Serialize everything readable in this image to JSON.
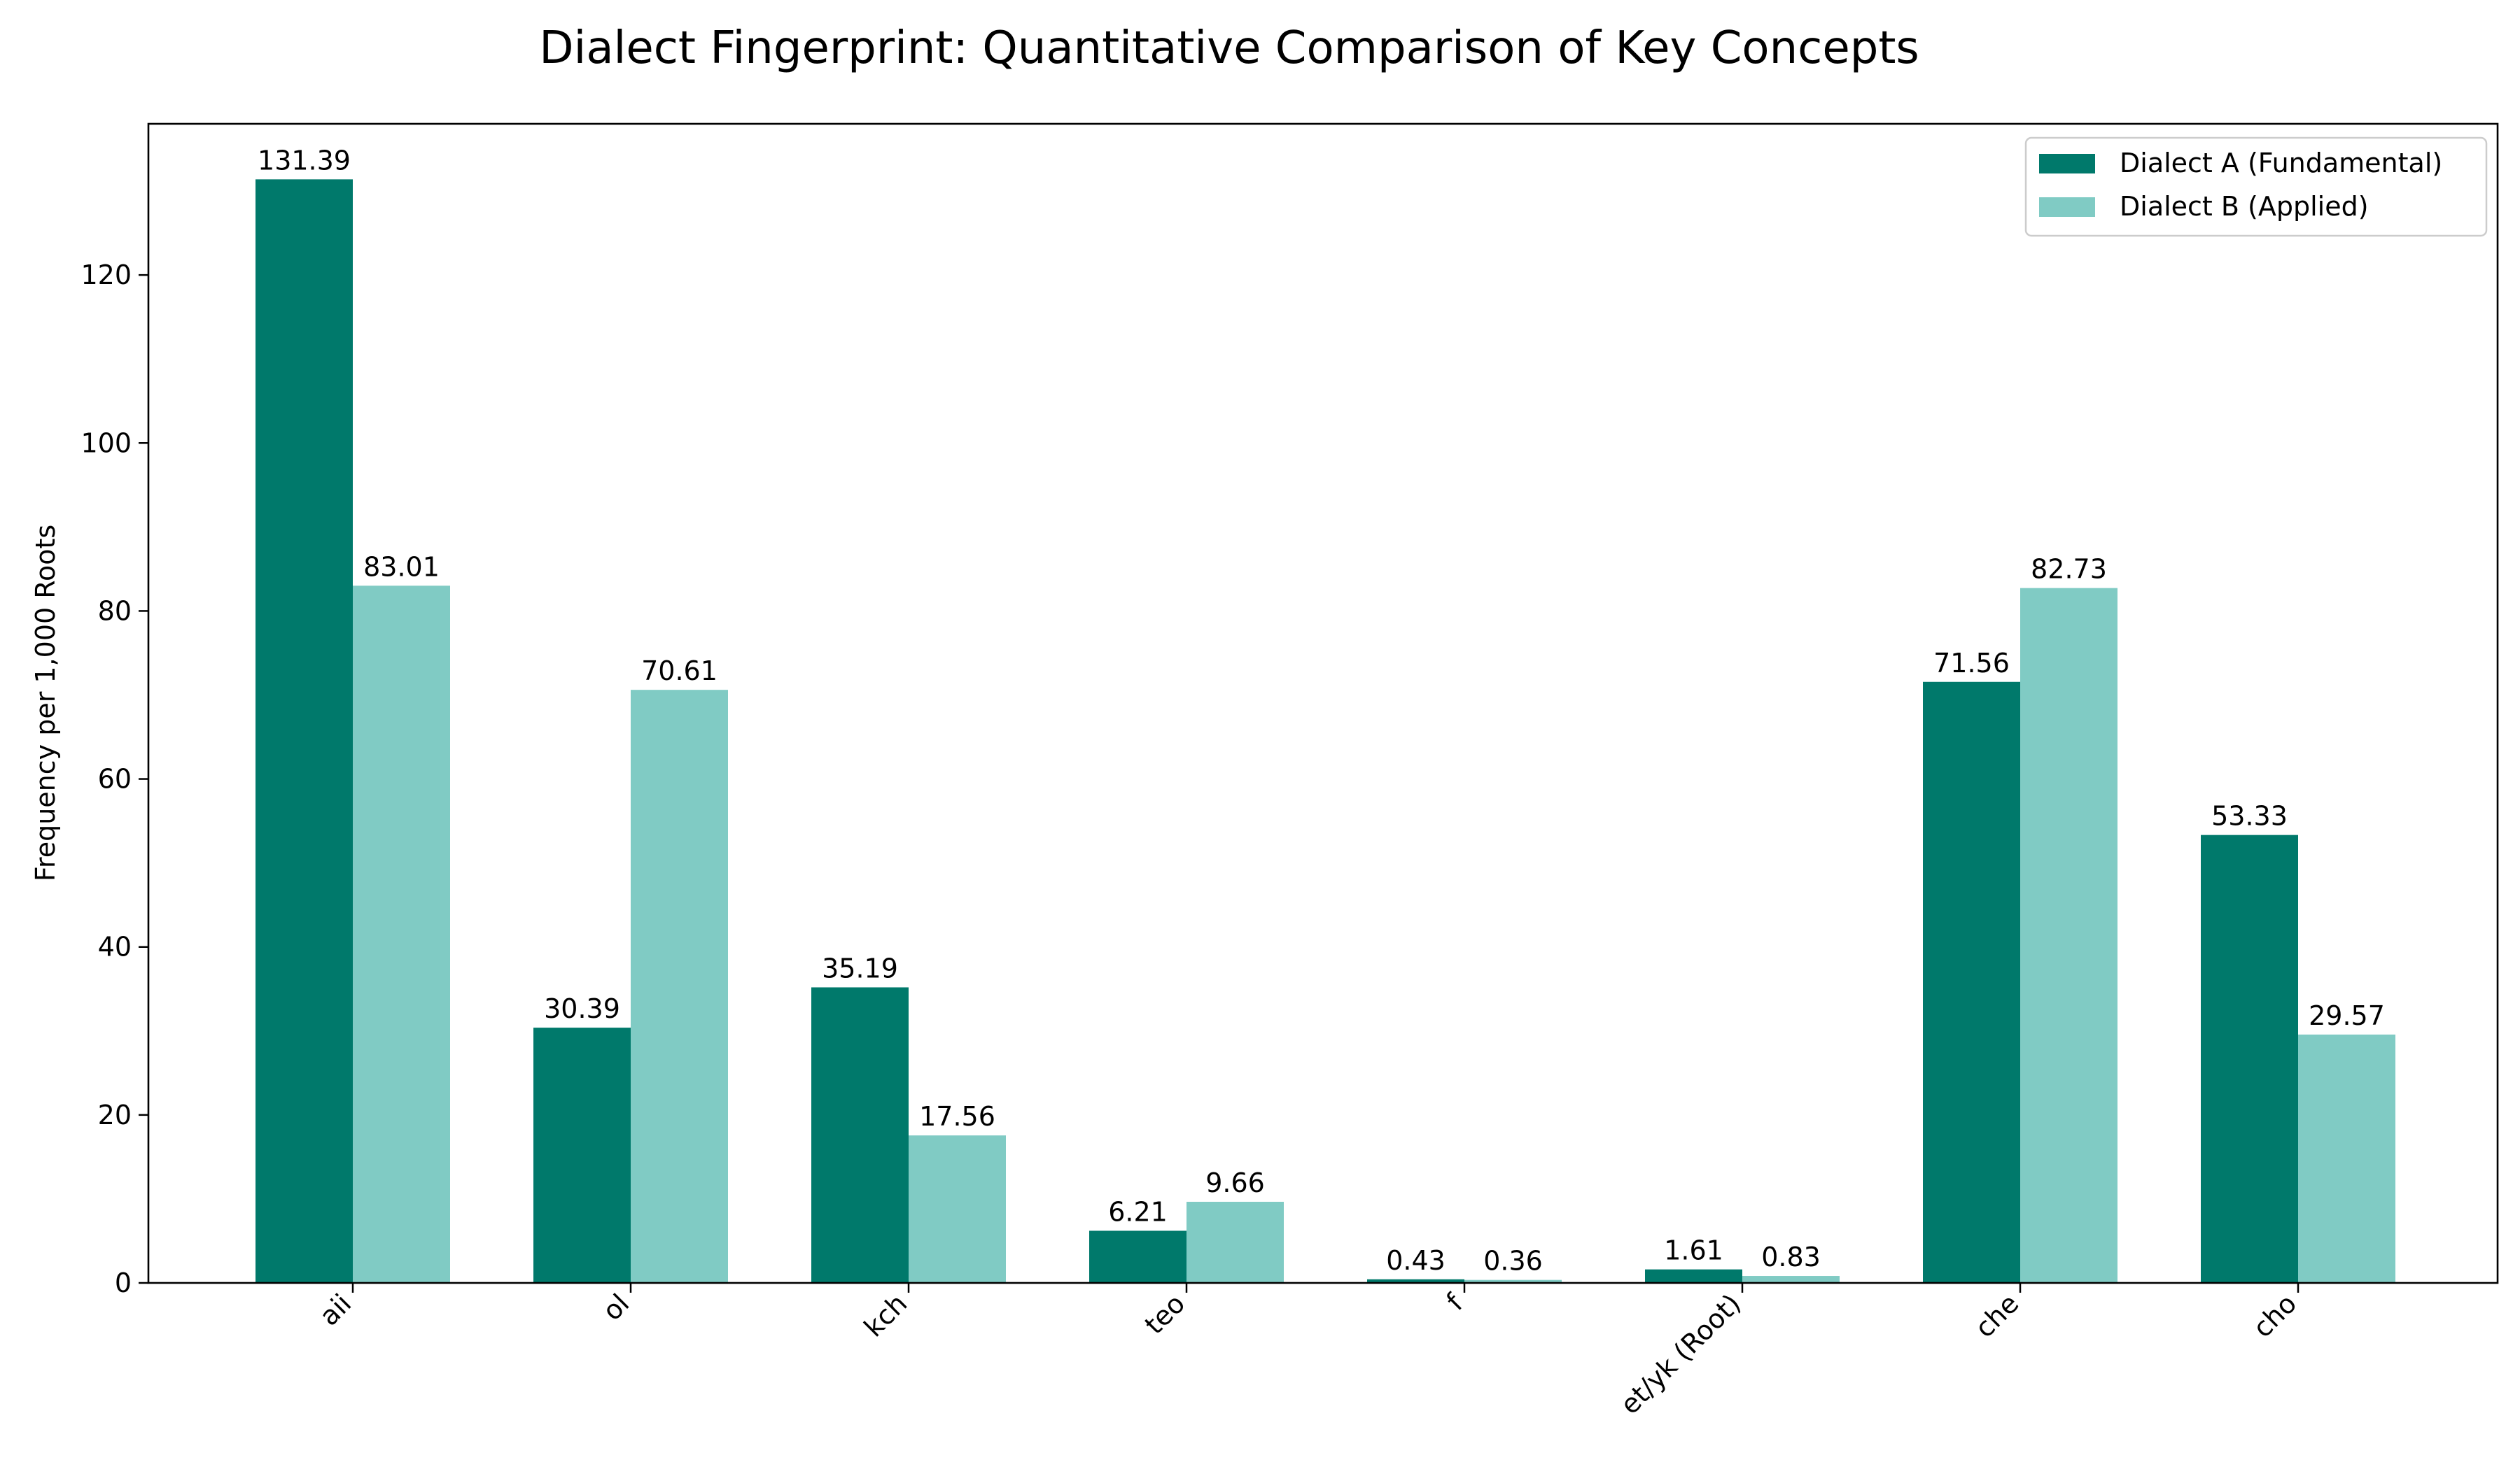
{
  "chart_data": {
    "type": "bar",
    "title": "Dialect Fingerprint: Quantitative Comparison of Key Concepts",
    "xlabel": "",
    "ylabel": "Frequency per 1,000 Roots",
    "categories": [
      "aii",
      "ol",
      "kch",
      "teo",
      "f",
      "et/yk (Root)",
      "che",
      "cho"
    ],
    "series": [
      {
        "name": "Dialect A (Fundamental)",
        "color": "#00796b",
        "values": [
          131.39,
          30.39,
          35.19,
          6.21,
          0.43,
          1.61,
          71.56,
          53.33
        ],
        "labels": [
          "131.39",
          "30.39",
          "35.19",
          "6.21",
          "0.43",
          "1.61",
          "71.56",
          "53.33"
        ]
      },
      {
        "name": "Dialect B (Applied)",
        "color": "#80cbc4",
        "values": [
          83.01,
          70.61,
          17.56,
          9.66,
          0.36,
          0.83,
          82.73,
          29.57
        ],
        "labels": [
          "83.01",
          "70.61",
          "17.56",
          "9.66",
          "0.36",
          "0.83",
          "82.73",
          "29.57"
        ]
      }
    ],
    "yticks": [
      0,
      20,
      40,
      60,
      80,
      100,
      120
    ],
    "ylim": [
      0,
      138.0
    ],
    "legend_position": "top-right",
    "grid": false
  }
}
